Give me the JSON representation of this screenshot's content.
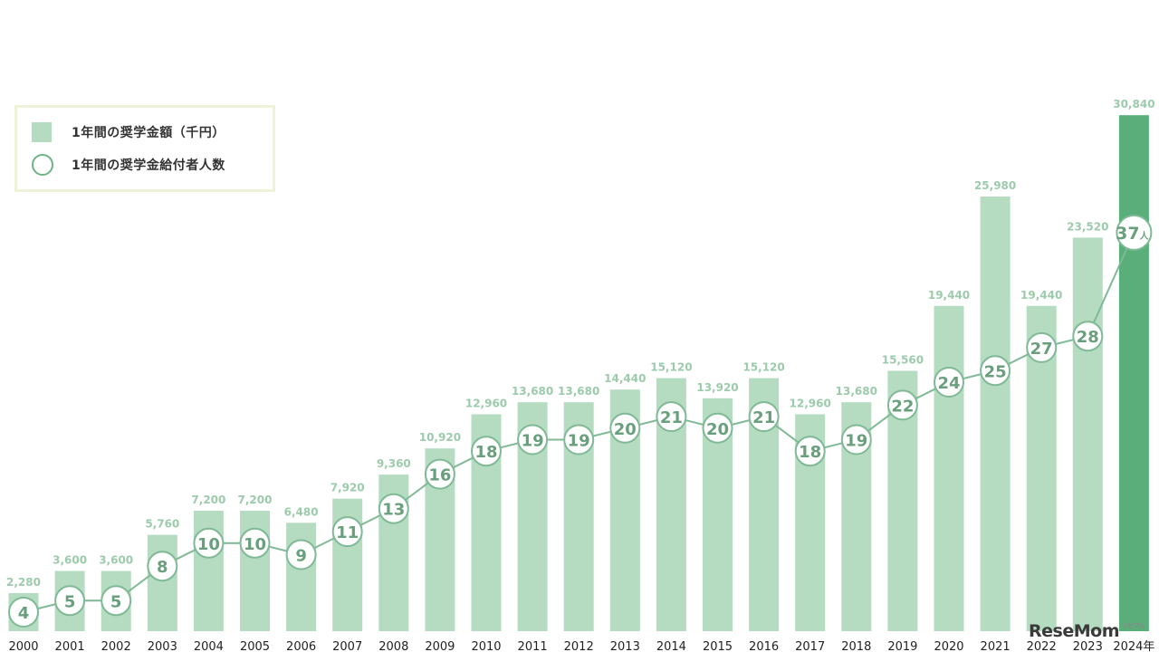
{
  "chart_data": {
    "type": "bar",
    "categories": [
      "2000",
      "2001",
      "2002",
      "2003",
      "2004",
      "2005",
      "2006",
      "2007",
      "2008",
      "2009",
      "2010",
      "2011",
      "2012",
      "2013",
      "2014",
      "2015",
      "2016",
      "2017",
      "2018",
      "2019",
      "2020",
      "2021",
      "2022",
      "2023",
      "2024年"
    ],
    "series": [
      {
        "name": "1年間の奨学金額（千円）",
        "type": "bar",
        "values": [
          2280,
          3600,
          3600,
          5760,
          7200,
          7200,
          6480,
          7920,
          9360,
          10920,
          12960,
          13680,
          13680,
          14440,
          15120,
          13920,
          15120,
          12960,
          13680,
          15560,
          19440,
          25980,
          19440,
          23520,
          30840
        ],
        "labels": [
          "2,280",
          "3,600",
          "3,600",
          "5,760",
          "7,200",
          "7,200",
          "6,480",
          "7,920",
          "9,360",
          "10,920",
          "12,960",
          "13,680",
          "13,680",
          "14,440",
          "15,120",
          "13,920",
          "15,120",
          "12,960",
          "13,680",
          "15,560",
          "19,440",
          "25,980",
          "19,440",
          "23,520",
          "30,840"
        ]
      },
      {
        "name": "1年間の奨学金給付者人数",
        "type": "line",
        "values": [
          4,
          5,
          5,
          8,
          10,
          10,
          9,
          11,
          13,
          16,
          18,
          19,
          19,
          20,
          21,
          20,
          21,
          18,
          19,
          22,
          24,
          25,
          27,
          28,
          37
        ],
        "last_unit": "人"
      }
    ],
    "bar_color": "#b5dcc0",
    "highlight_bar_color": "#5aae7a",
    "line_color": "#7fb996",
    "label_color": "#9ccbab",
    "ylim": [
      0,
      31500
    ]
  },
  "legend": {
    "bar_label": "1年間の奨学金額（千円）",
    "line_label": "1年間の奨学金給付者人数"
  },
  "watermark": {
    "text": "ReseMom",
    "sub": "リセマム"
  }
}
